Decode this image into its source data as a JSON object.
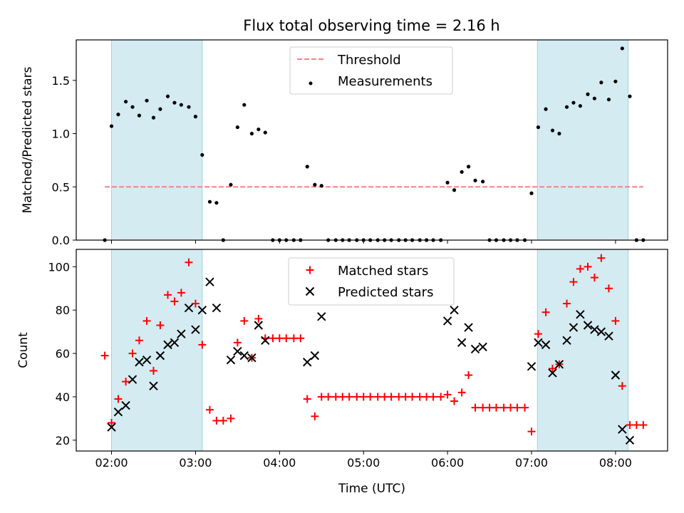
{
  "figure": {
    "title": "Flux total observing time = 2.16 h",
    "xlabel": "Time (UTC)",
    "xticks": [
      {
        "value": 2,
        "label": "02:00"
      },
      {
        "value": 3,
        "label": "03:00"
      },
      {
        "value": 4,
        "label": "04:00"
      },
      {
        "value": 5,
        "label": "05:00"
      },
      {
        "value": 6,
        "label": "06:00"
      },
      {
        "value": 7,
        "label": "07:00"
      },
      {
        "value": 8,
        "label": "08:00"
      }
    ],
    "xlim": [
      1.58,
      8.62
    ]
  },
  "colors": {
    "shade": "#add8e6",
    "threshold": "#ff7f7f",
    "measurement": "#000000",
    "matched": "#ff0000",
    "predicted": "#000000"
  },
  "chart_data": [
    {
      "type": "scatter",
      "title": "Flux total observing time = 2.16 h",
      "ylabel": "Matched/Predicted stars",
      "ylim": [
        0,
        1.88
      ],
      "yticks": [
        {
          "value": 0,
          "label": "0.0"
        },
        {
          "value": 0.5,
          "label": "0.5"
        },
        {
          "value": 1.0,
          "label": "1.0"
        },
        {
          "value": 1.5,
          "label": "1.5"
        }
      ],
      "legend": {
        "position": "top-center",
        "entries": [
          "Threshold",
          "Measurements"
        ]
      },
      "shaded_intervals": [
        [
          2.0,
          3.08
        ],
        [
          7.07,
          8.15
        ]
      ],
      "threshold": {
        "name": "Threshold",
        "y": 0.5,
        "x_range": [
          1.92,
          8.33
        ],
        "style": "dashed"
      },
      "series": [
        {
          "name": "Measurements",
          "marker": "dot",
          "x": [
            1.92,
            2.0,
            2.08,
            2.17,
            2.25,
            2.33,
            2.42,
            2.5,
            2.58,
            2.67,
            2.75,
            2.83,
            2.92,
            3.0,
            3.08,
            3.17,
            3.25,
            3.33,
            3.42,
            3.5,
            3.58,
            3.67,
            3.75,
            3.83,
            3.92,
            4.0,
            4.08,
            4.17,
            4.25,
            4.33,
            4.42,
            4.5,
            4.58,
            4.67,
            4.75,
            4.83,
            4.92,
            5.0,
            5.08,
            5.17,
            5.25,
            5.33,
            5.42,
            5.5,
            5.58,
            5.67,
            5.75,
            5.83,
            5.92,
            6.0,
            6.08,
            6.17,
            6.25,
            6.33,
            6.42,
            6.5,
            6.58,
            6.67,
            6.75,
            6.83,
            6.92,
            7.0,
            7.08,
            7.17,
            7.25,
            7.33,
            7.42,
            7.5,
            7.58,
            7.67,
            7.75,
            7.83,
            7.92,
            8.0,
            8.08,
            8.17,
            8.25,
            8.33
          ],
          "y": [
            0.0,
            1.07,
            1.18,
            1.3,
            1.25,
            1.17,
            1.31,
            1.15,
            1.23,
            1.35,
            1.29,
            1.27,
            1.25,
            1.16,
            0.8,
            0.36,
            0.35,
            0.0,
            0.52,
            1.06,
            1.27,
            1.0,
            1.04,
            1.01,
            0.0,
            0.0,
            0.0,
            0.0,
            0.0,
            0.69,
            0.52,
            0.51,
            0.0,
            0.0,
            0.0,
            0.0,
            0.0,
            0.0,
            0.0,
            0.0,
            0.0,
            0.0,
            0.0,
            0.0,
            0.0,
            0.0,
            0.0,
            0.0,
            0.0,
            0.54,
            0.47,
            0.64,
            0.69,
            0.56,
            0.55,
            0.0,
            0.0,
            0.0,
            0.0,
            0.0,
            0.0,
            0.44,
            1.06,
            1.23,
            1.03,
            1.0,
            1.25,
            1.29,
            1.26,
            1.37,
            1.33,
            1.48,
            1.32,
            1.49,
            1.8,
            1.35,
            0.0,
            0.0
          ]
        }
      ]
    },
    {
      "type": "scatter",
      "xlabel": "Time (UTC)",
      "ylabel": "Count",
      "ylim": [
        15,
        108
      ],
      "yticks": [
        {
          "value": 20,
          "label": "20"
        },
        {
          "value": 40,
          "label": "40"
        },
        {
          "value": 60,
          "label": "60"
        },
        {
          "value": 80,
          "label": "80"
        },
        {
          "value": 100,
          "label": "100"
        }
      ],
      "legend": {
        "position": "top-center",
        "entries": [
          "Matched stars",
          "Predicted stars"
        ]
      },
      "shaded_intervals": [
        [
          2.0,
          3.08
        ],
        [
          7.07,
          8.15
        ]
      ],
      "series": [
        {
          "name": "Matched stars",
          "marker": "plus",
          "x": [
            1.92,
            2.0,
            2.08,
            2.17,
            2.25,
            2.33,
            2.42,
            2.5,
            2.58,
            2.67,
            2.75,
            2.83,
            2.92,
            3.0,
            3.08,
            3.17,
            3.25,
            3.33,
            3.42,
            3.5,
            3.58,
            3.67,
            3.75,
            3.83,
            3.92,
            4.0,
            4.08,
            4.17,
            4.25,
            4.33,
            4.42,
            4.5,
            4.58,
            4.67,
            4.75,
            4.83,
            4.92,
            5.0,
            5.08,
            5.17,
            5.25,
            5.33,
            5.42,
            5.5,
            5.58,
            5.67,
            5.75,
            5.83,
            5.92,
            6.0,
            6.08,
            6.17,
            6.25,
            6.33,
            6.42,
            6.5,
            6.58,
            6.67,
            6.75,
            6.83,
            6.92,
            7.0,
            7.08,
            7.17,
            7.25,
            7.33,
            7.42,
            7.5,
            7.58,
            7.67,
            7.75,
            7.83,
            7.92,
            8.0,
            8.08,
            8.17,
            8.25,
            8.33
          ],
          "y": [
            59,
            28,
            39,
            47,
            60,
            66,
            75,
            52,
            73,
            87,
            84,
            88,
            102,
            83,
            64,
            34,
            29,
            29,
            30,
            65,
            75,
            58,
            76,
            67,
            67,
            67,
            67,
            67,
            67,
            39,
            31,
            40,
            40,
            40,
            40,
            40,
            40,
            40,
            40,
            40,
            40,
            40,
            40,
            40,
            40,
            40,
            40,
            40,
            40,
            41,
            38,
            42,
            50,
            35,
            35,
            35,
            35,
            35,
            35,
            35,
            35,
            24,
            69,
            79,
            53,
            55,
            83,
            93,
            99,
            100,
            95,
            104,
            90,
            75,
            45,
            27,
            27,
            27
          ]
        },
        {
          "name": "Predicted stars",
          "marker": "x",
          "x": [
            2.0,
            2.08,
            2.17,
            2.25,
            2.33,
            2.42,
            2.5,
            2.58,
            2.67,
            2.75,
            2.83,
            2.92,
            3.0,
            3.08,
            3.17,
            3.25,
            3.42,
            3.5,
            3.58,
            3.67,
            3.75,
            3.83,
            4.33,
            4.42,
            4.5,
            6.0,
            6.08,
            6.17,
            6.25,
            6.33,
            6.42,
            7.0,
            7.08,
            7.17,
            7.25,
            7.33,
            7.42,
            7.5,
            7.58,
            7.67,
            7.75,
            7.83,
            7.92,
            8.0,
            8.08,
            8.17
          ],
          "y": [
            26,
            33,
            36,
            48,
            56,
            57,
            45,
            59,
            64,
            65,
            69,
            81,
            71,
            80,
            93,
            81,
            57,
            61,
            59,
            58,
            73,
            66,
            56,
            59,
            77,
            75,
            80,
            65,
            72,
            62,
            63,
            54,
            65,
            64,
            51,
            55,
            66,
            72,
            78,
            73,
            71,
            70,
            68,
            50,
            25,
            20
          ]
        }
      ]
    }
  ]
}
